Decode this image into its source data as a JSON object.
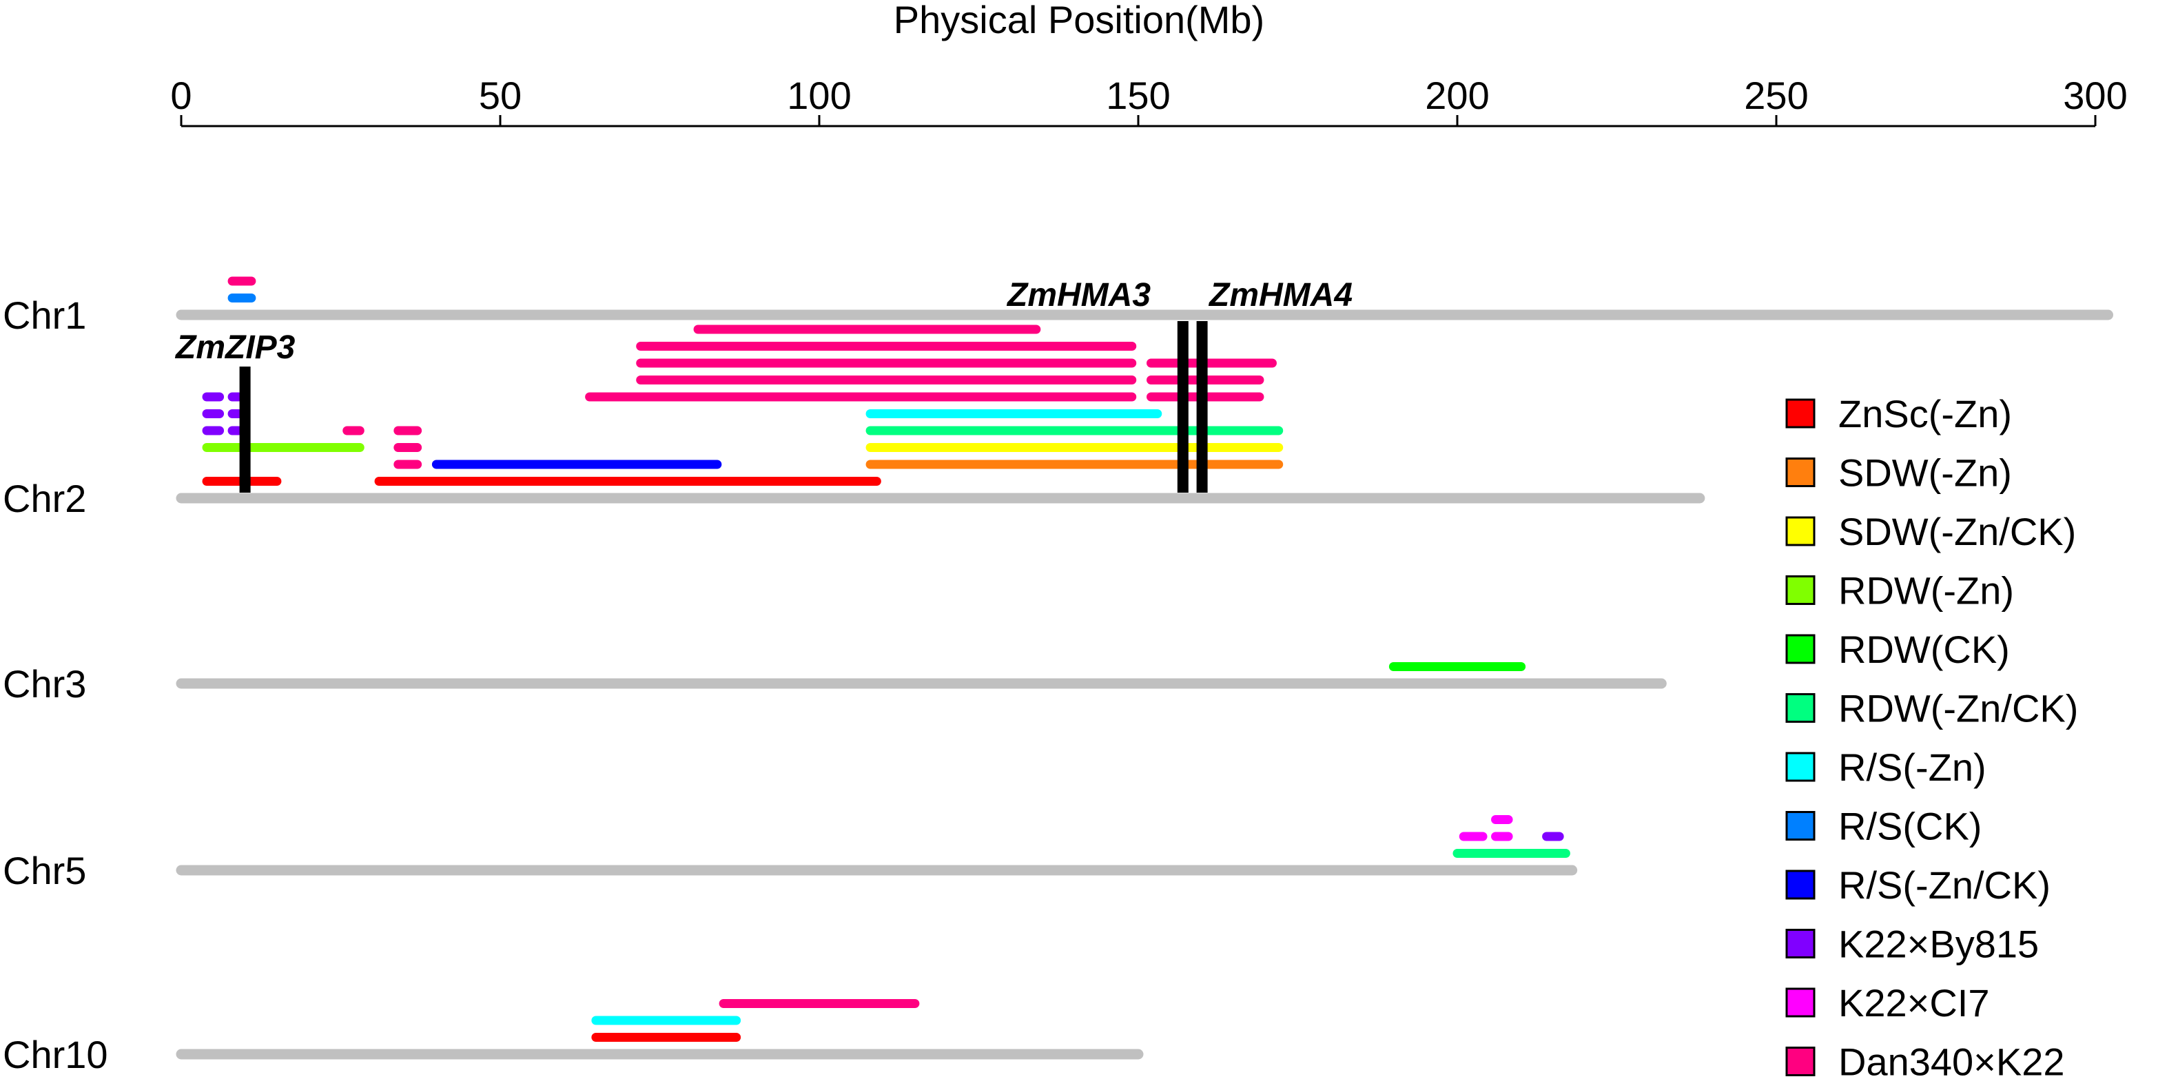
{
  "chart_data": {
    "type": "diagram",
    "axis": {
      "title": "Physical Position(Mb)",
      "range": [
        0,
        300
      ],
      "ticks": [
        0,
        50,
        100,
        150,
        200,
        250,
        300
      ]
    },
    "chromosomes": [
      {
        "name": "Chr1",
        "length": 302
      },
      {
        "name": "Chr2",
        "length": 238
      },
      {
        "name": "Chr3",
        "length": 232
      },
      {
        "name": "Chr5",
        "length": 218
      },
      {
        "name": "Chr10",
        "length": 150
      }
    ],
    "legend": [
      {
        "label": "ZnSc(-Zn)",
        "color": "#ff0000"
      },
      {
        "label": "SDW(-Zn)",
        "color": "#ff7f0e"
      },
      {
        "label": "SDW(-Zn/CK)",
        "color": "#ffff00"
      },
      {
        "label": "RDW(-Zn)",
        "color": "#80ff00"
      },
      {
        "label": "RDW(CK)",
        "color": "#00ff00"
      },
      {
        "label": "RDW(-Zn/CK)",
        "color": "#00ff80"
      },
      {
        "label": "R/S(-Zn)",
        "color": "#00ffff"
      },
      {
        "label": "R/S(CK)",
        "color": "#0080ff"
      },
      {
        "label": "R/S(-Zn/CK)",
        "color": "#0000ff"
      },
      {
        "label": "K22×By815",
        "color": "#8000ff"
      },
      {
        "label": "K22×CI7",
        "color": "#ff00ff"
      },
      {
        "label": "Dan340×K22",
        "color": "#ff0080"
      }
    ],
    "genes": [
      {
        "name": "ZmZIP3",
        "chromosome": "Chr2",
        "position": 10
      },
      {
        "name": "ZmHMA3",
        "chromosome": "Chr2",
        "position": 157
      },
      {
        "name": "ZmHMA4",
        "chromosome": "Chr2",
        "position": 160
      }
    ],
    "intervals": [
      {
        "chromosome": "Chr1",
        "trait": "Dan340×K22",
        "start": 8,
        "end": 11,
        "level": 2
      },
      {
        "chromosome": "Chr1",
        "trait": "R/S(CK)",
        "start": 8,
        "end": 11,
        "level": 1
      },
      {
        "chromosome": "Chr2",
        "trait": "Dan340×K22",
        "start": 81,
        "end": 134,
        "level": 10
      },
      {
        "chromosome": "Chr2",
        "trait": "Dan340×K22",
        "start": 72,
        "end": 149,
        "level": 9
      },
      {
        "chromosome": "Chr2",
        "trait": "Dan340×K22",
        "start": 72,
        "end": 149,
        "level": 8
      },
      {
        "chromosome": "Chr2",
        "trait": "Dan340×K22",
        "start": 152,
        "end": 171,
        "level": 8
      },
      {
        "chromosome": "Chr2",
        "trait": "Dan340×K22",
        "start": 72,
        "end": 149,
        "level": 7
      },
      {
        "chromosome": "Chr2",
        "trait": "Dan340×K22",
        "start": 152,
        "end": 169,
        "level": 7
      },
      {
        "chromosome": "Chr2",
        "trait": "Dan340×K22",
        "start": 64,
        "end": 149,
        "level": 6
      },
      {
        "chromosome": "Chr2",
        "trait": "Dan340×K22",
        "start": 152,
        "end": 169,
        "level": 6
      },
      {
        "chromosome": "Chr2",
        "trait": "K22×By815",
        "start": 4,
        "end": 6,
        "level": 6
      },
      {
        "chromosome": "Chr2",
        "trait": "K22×By815",
        "start": 8,
        "end": 9,
        "level": 6
      },
      {
        "chromosome": "Chr2",
        "trait": "K22×By815",
        "start": 4,
        "end": 6,
        "level": 5
      },
      {
        "chromosome": "Chr2",
        "trait": "K22×By815",
        "start": 8,
        "end": 9,
        "level": 5
      },
      {
        "chromosome": "Chr2",
        "trait": "R/S(-Zn)",
        "start": 108,
        "end": 153,
        "level": 5
      },
      {
        "chromosome": "Chr2",
        "trait": "K22×By815",
        "start": 4,
        "end": 6,
        "level": 4
      },
      {
        "chromosome": "Chr2",
        "trait": "K22×By815",
        "start": 8,
        "end": 9,
        "level": 4
      },
      {
        "chromosome": "Chr2",
        "trait": "Dan340×K22",
        "start": 26,
        "end": 28,
        "level": 4
      },
      {
        "chromosome": "Chr2",
        "trait": "Dan340×K22",
        "start": 34,
        "end": 37,
        "level": 4
      },
      {
        "chromosome": "Chr2",
        "trait": "RDW(-Zn/CK)",
        "start": 108,
        "end": 172,
        "level": 4
      },
      {
        "chromosome": "Chr2",
        "trait": "RDW(-Zn)",
        "start": 4,
        "end": 28,
        "level": 3
      },
      {
        "chromosome": "Chr2",
        "trait": "Dan340×K22",
        "start": 34,
        "end": 37,
        "level": 3
      },
      {
        "chromosome": "Chr2",
        "trait": "SDW(-Zn/CK)",
        "start": 108,
        "end": 172,
        "level": 3
      },
      {
        "chromosome": "Chr2",
        "trait": "Dan340×K22",
        "start": 34,
        "end": 37,
        "level": 2
      },
      {
        "chromosome": "Chr2",
        "trait": "R/S(-Zn/CK)",
        "start": 40,
        "end": 84,
        "level": 2
      },
      {
        "chromosome": "Chr2",
        "trait": "SDW(-Zn)",
        "start": 108,
        "end": 172,
        "level": 2
      },
      {
        "chromosome": "Chr2",
        "trait": "ZnSc(-Zn)",
        "start": 4,
        "end": 15,
        "level": 1
      },
      {
        "chromosome": "Chr2",
        "trait": "ZnSc(-Zn)",
        "start": 31,
        "end": 109,
        "level": 1
      },
      {
        "chromosome": "Chr3",
        "trait": "RDW(CK)",
        "start": 190,
        "end": 210,
        "level": 1
      },
      {
        "chromosome": "Chr5",
        "trait": "K22×CI7",
        "start": 206,
        "end": 208,
        "level": 3
      },
      {
        "chromosome": "Chr5",
        "trait": "K22×CI7",
        "start": 201,
        "end": 204,
        "level": 2
      },
      {
        "chromosome": "Chr5",
        "trait": "K22×CI7",
        "start": 206,
        "end": 208,
        "level": 2
      },
      {
        "chromosome": "Chr5",
        "trait": "K22×By815",
        "start": 214,
        "end": 216,
        "level": 2
      },
      {
        "chromosome": "Chr5",
        "trait": "RDW(-Zn/CK)",
        "start": 200,
        "end": 217,
        "level": 1
      },
      {
        "chromosome": "Chr10",
        "trait": "Dan340×K22",
        "start": 85,
        "end": 115,
        "level": 3
      },
      {
        "chromosome": "Chr10",
        "trait": "R/S(-Zn)",
        "start": 65,
        "end": 87,
        "level": 2
      },
      {
        "chromosome": "Chr10",
        "trait": "ZnSc(-Zn)",
        "start": 65,
        "end": 87,
        "level": 1
      }
    ]
  }
}
